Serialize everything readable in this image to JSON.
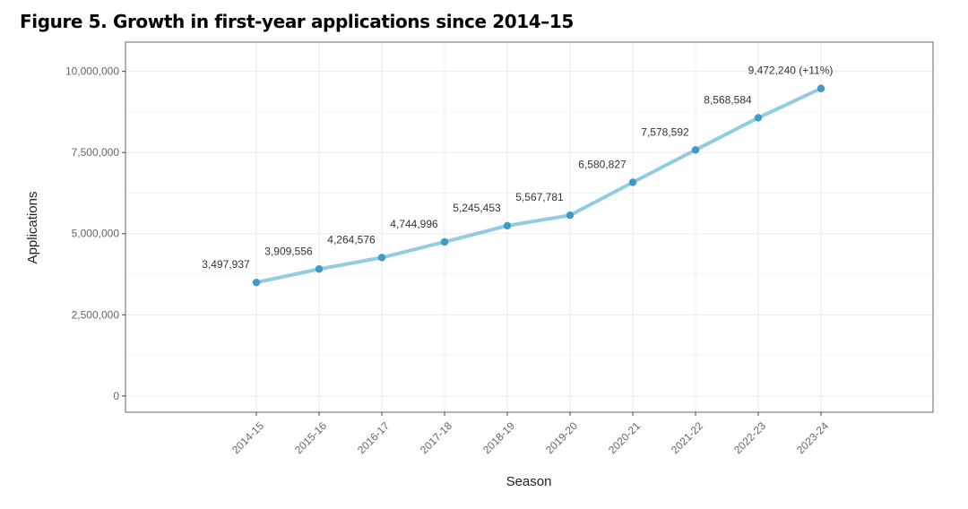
{
  "figure": {
    "title": "Figure 5. Growth in first-year applications since 2014–15"
  },
  "chart_data": {
    "type": "line",
    "title": "Figure 5. Growth in first-year applications since 2014–15",
    "xlabel": "Season",
    "ylabel": "Applications",
    "categories": [
      "2014-15",
      "2015-16",
      "2016-17",
      "2017-18",
      "2018-19",
      "2019-20",
      "2020-21",
      "2021-22",
      "2022-23",
      "2023-24"
    ],
    "series": [
      {
        "name": "Applications",
        "values": [
          3497937,
          3909556,
          4264576,
          4744996,
          5245453,
          5567781,
          6580827,
          7578592,
          8568584,
          9472240
        ],
        "labels": [
          "3,497,937",
          "3,909,556",
          "4,264,576",
          "4,744,996",
          "5,245,453",
          "5,567,781",
          "6,580,827",
          "7,578,592",
          "8,568,584",
          "9,472,240 (+11%)"
        ],
        "line_color": "#92cce0",
        "point_color": "#3f9ac9"
      }
    ],
    "yticks": [
      0,
      2500000,
      5000000,
      7500000,
      10000000
    ],
    "ytick_labels": [
      "0",
      "2,500,000",
      "5,000,000",
      "7,500,000",
      "10,000,000"
    ],
    "ylim": [
      -500000,
      10900000
    ],
    "grid": true,
    "legend": "none"
  }
}
